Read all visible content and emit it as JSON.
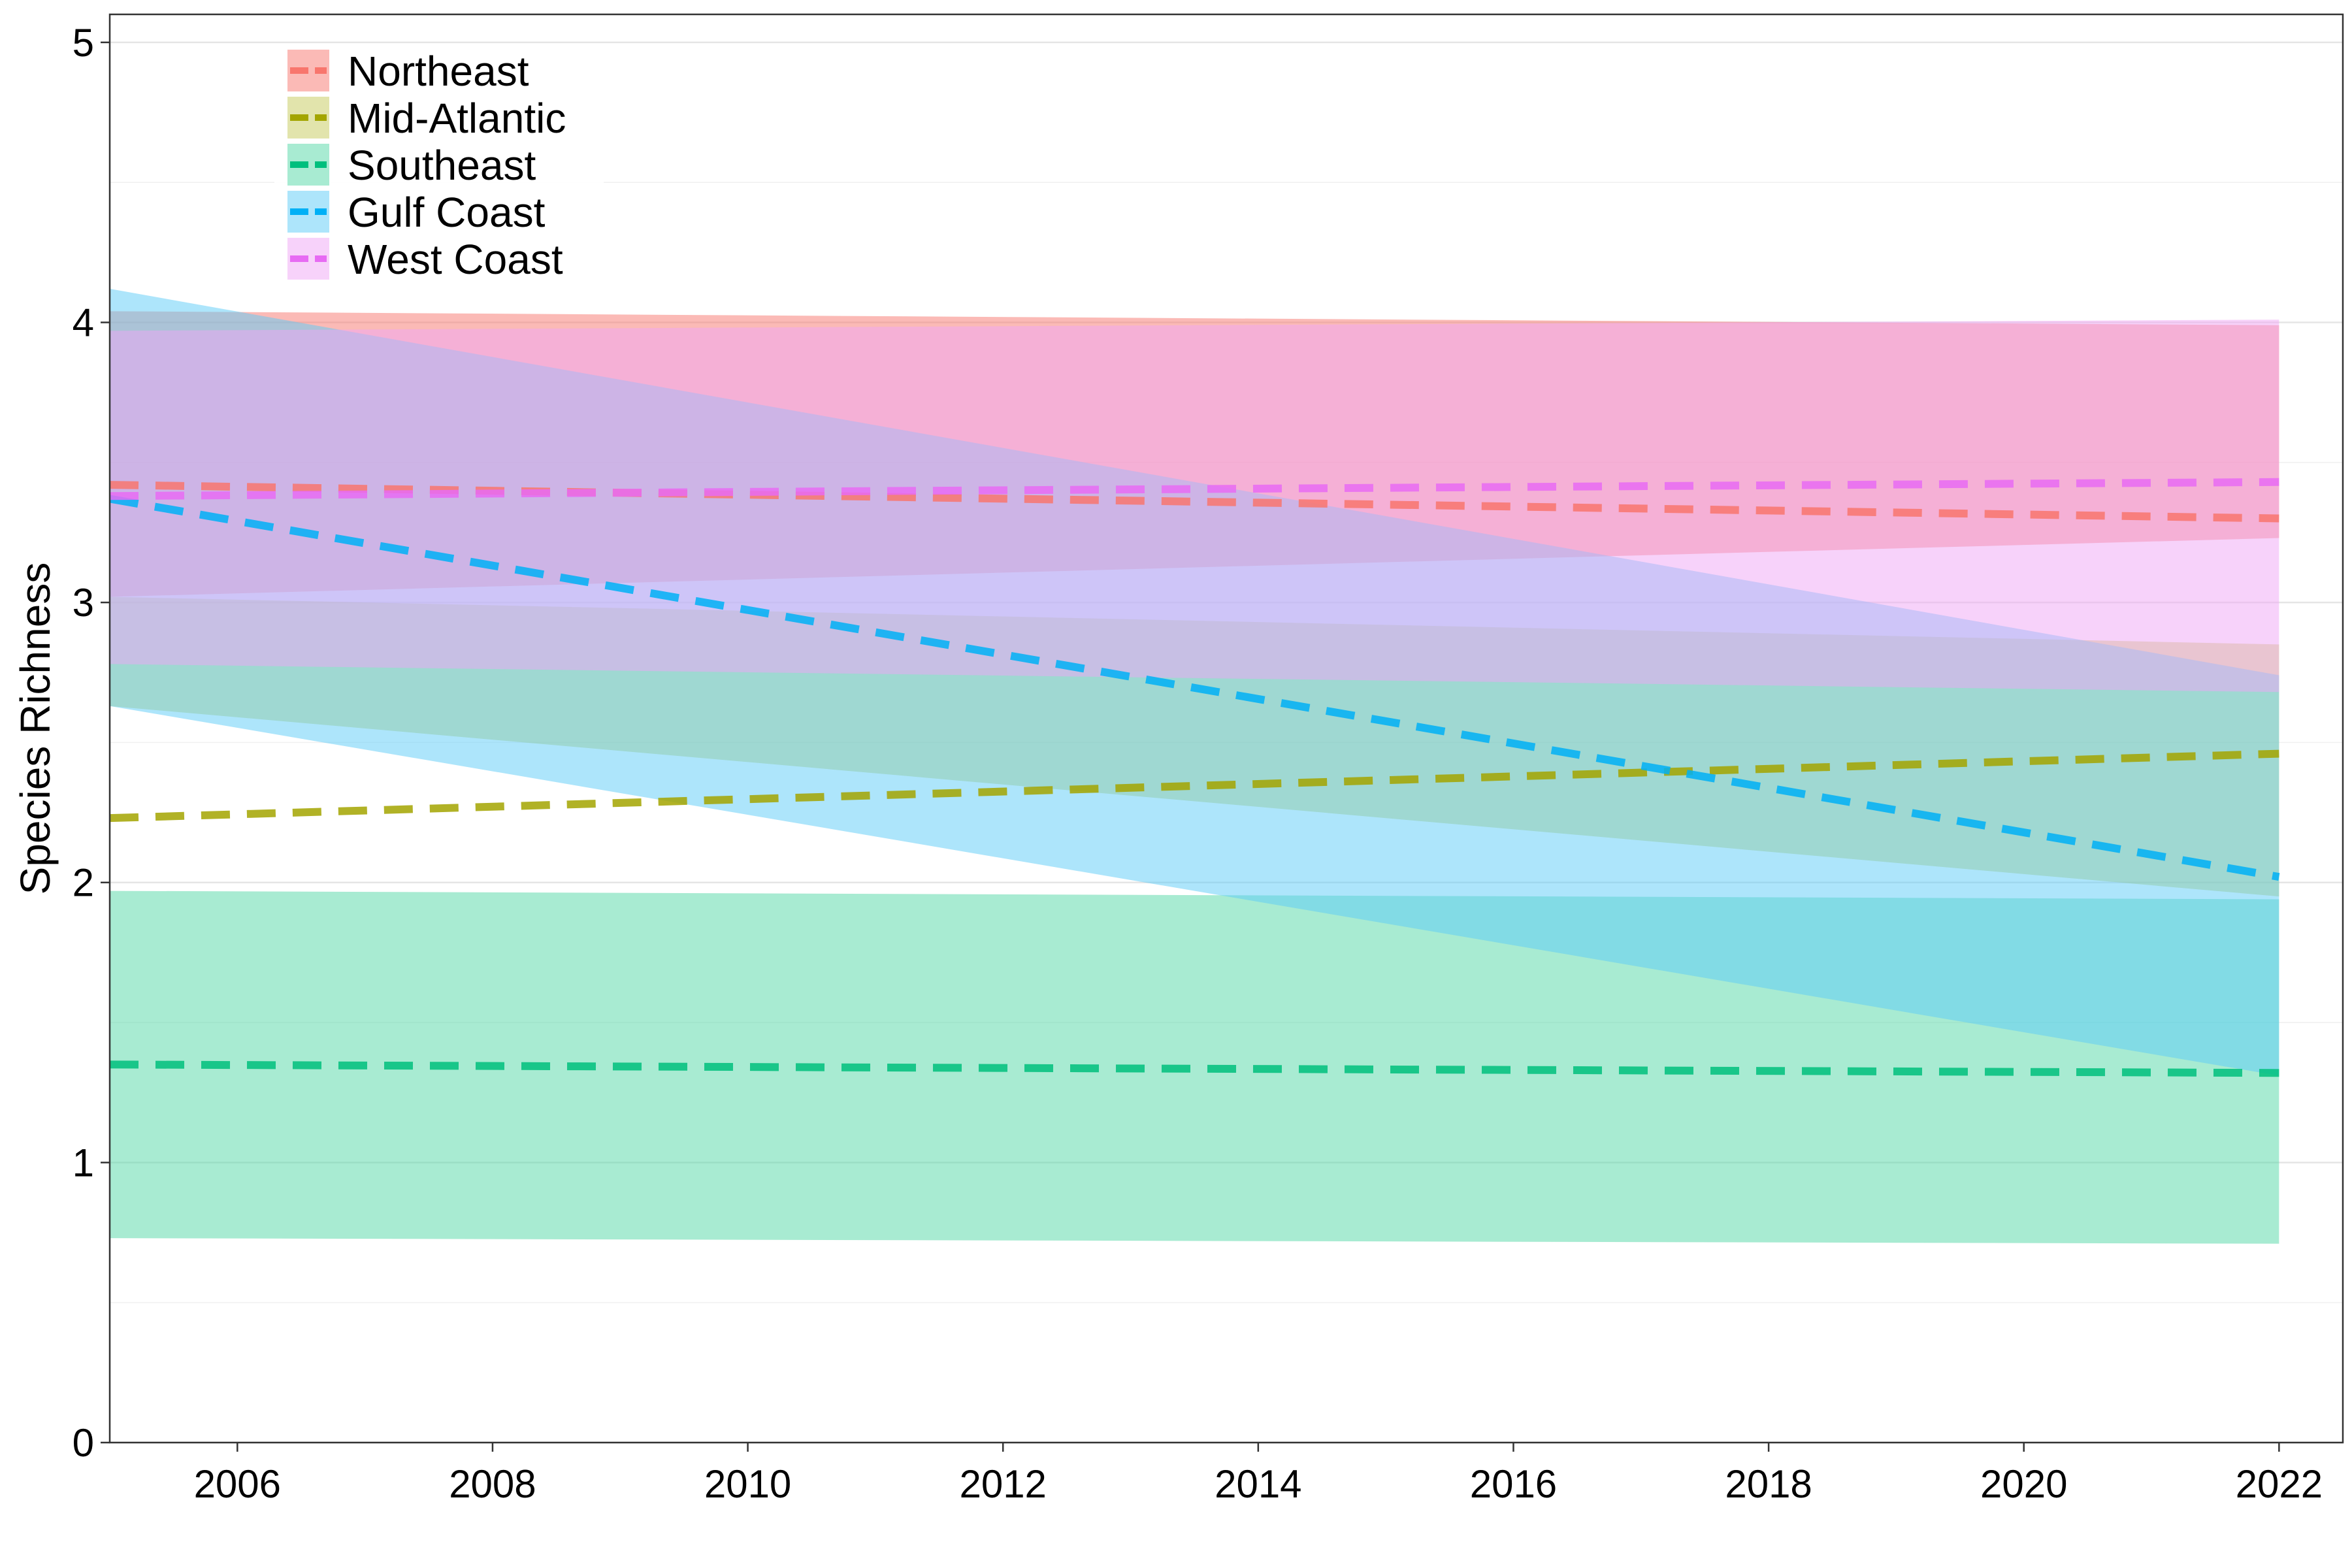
{
  "chart_data": {
    "type": "line",
    "title": "",
    "xlabel": "",
    "ylabel": "Species Richness",
    "xlim": [
      2005,
      2022.5
    ],
    "ylim": [
      0,
      5.1
    ],
    "x_ticks": [
      2006,
      2008,
      2010,
      2012,
      2014,
      2016,
      2018,
      2020,
      2022
    ],
    "y_ticks": [
      0,
      1,
      2,
      3,
      4,
      5
    ],
    "grid": true,
    "line_style": "dashed",
    "legend": {
      "position": "top-left"
    },
    "x": [
      2005,
      2022
    ],
    "series": [
      {
        "name": "Northeast",
        "color": "#F8766D",
        "fill": "#F8766D",
        "values": [
          3.42,
          3.3
        ],
        "lower": [
          3.02,
          3.23
        ],
        "upper": [
          4.04,
          3.99
        ]
      },
      {
        "name": "Mid-Atlantic",
        "color": "#A3A500",
        "fill": "#C5C95A",
        "values": [
          2.23,
          2.46
        ],
        "lower": [
          2.63,
          1.95
        ],
        "upper": [
          3.02,
          2.85
        ]
      },
      {
        "name": "Southeast",
        "color": "#00BF7D",
        "fill": "#52D7A5",
        "values": [
          1.35,
          1.32
        ],
        "lower": [
          0.73,
          0.71
        ],
        "upper": [
          1.97,
          1.94
        ]
      },
      {
        "name": "Gulf Coast",
        "color": "#00B0F6",
        "fill": "#5CCCF7",
        "values": [
          3.37,
          2.02
        ],
        "lower": [
          2.63,
          1.31
        ],
        "upper": [
          4.12,
          2.74
        ]
      },
      {
        "name": "West Coast",
        "color": "#E76BF3",
        "fill": "#F0A6F6",
        "values": [
          3.38,
          3.43
        ],
        "lower": [
          2.78,
          2.68
        ],
        "upper": [
          3.97,
          4.01
        ]
      }
    ]
  }
}
